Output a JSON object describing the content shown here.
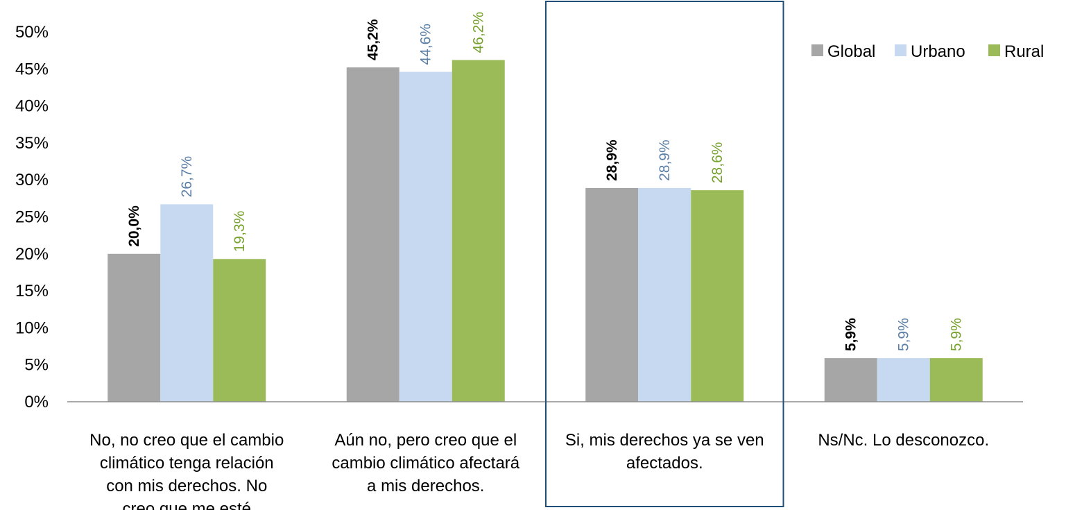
{
  "chart_data": {
    "type": "bar",
    "title": "",
    "xlabel": "",
    "ylabel": "",
    "ylim": [
      0,
      0.5
    ],
    "y_ticks": [
      "0%",
      "5%",
      "10%",
      "15%",
      "20%",
      "25%",
      "30%",
      "35%",
      "40%",
      "45%",
      "50%"
    ],
    "grid": false,
    "legend_position": "top-right",
    "categories": [
      [
        "No, no creo que el cambio",
        "climático tenga relación",
        "con mis derechos. No",
        "creo que me esté"
      ],
      [
        "Aún no, pero creo que el",
        "cambio climático afectará",
        "a mis derechos."
      ],
      [
        "Si, mis derechos ya se ven",
        "afectados."
      ],
      [
        "Ns/Nc. Lo desconozco."
      ]
    ],
    "series": [
      {
        "name": "Global",
        "color": "#a6a6a6",
        "label_color": "#000000",
        "label_bold": true,
        "values": [
          0.2,
          0.452,
          0.289,
          0.059
        ],
        "labels": [
          "20,0%",
          "45,2%",
          "28,9%",
          "5,9%"
        ]
      },
      {
        "name": "Urbano",
        "color": "#c6d9f1",
        "label_color": "#5b7fa6",
        "label_bold": false,
        "values": [
          0.267,
          0.446,
          0.289,
          0.059
        ],
        "labels": [
          "26,7%",
          "44,6%",
          "28,9%",
          "5,9%"
        ]
      },
      {
        "name": "Rural",
        "color": "#9bbb59",
        "label_color": "#77a22e",
        "label_bold": false,
        "values": [
          0.193,
          0.462,
          0.286,
          0.059
        ],
        "labels": [
          "19,3%",
          "46,2%",
          "28,6%",
          "5,9%"
        ]
      }
    ],
    "highlighted_category_index": 2,
    "highlight_color": "#1f4e79"
  }
}
